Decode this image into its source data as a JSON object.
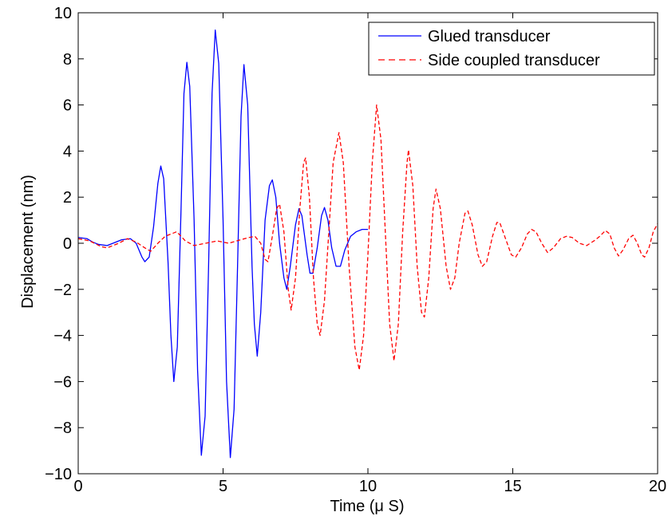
{
  "chart_data": {
    "type": "line",
    "title": "",
    "xlabel": "Time (μ S)",
    "ylabel": "Displacement (nm)",
    "xlim": [
      0,
      20
    ],
    "ylim": [
      -10,
      10
    ],
    "xticks": [
      0,
      5,
      10,
      15,
      20
    ],
    "yticks": [
      -10,
      -8,
      -6,
      -4,
      -2,
      0,
      2,
      4,
      6,
      8,
      10
    ],
    "grid": false,
    "legend": "top-right",
    "series": [
      {
        "name": "Glued transducer",
        "color": "#0000ff",
        "style": "solid",
        "points": [
          [
            0.0,
            0.25
          ],
          [
            0.3,
            0.2
          ],
          [
            0.5,
            0.05
          ],
          [
            0.7,
            -0.05
          ],
          [
            1.0,
            -0.1
          ],
          [
            1.2,
            0.0
          ],
          [
            1.5,
            0.15
          ],
          [
            1.8,
            0.2
          ],
          [
            2.0,
            0.0
          ],
          [
            2.2,
            -0.6
          ],
          [
            2.3,
            -0.8
          ],
          [
            2.45,
            -0.6
          ],
          [
            2.6,
            0.7
          ],
          [
            2.75,
            2.6
          ],
          [
            2.85,
            3.35
          ],
          [
            2.95,
            2.8
          ],
          [
            3.1,
            -0.8
          ],
          [
            3.2,
            -4.0
          ],
          [
            3.3,
            -6.0
          ],
          [
            3.42,
            -4.5
          ],
          [
            3.55,
            1.5
          ],
          [
            3.65,
            6.5
          ],
          [
            3.75,
            7.85
          ],
          [
            3.85,
            6.8
          ],
          [
            4.0,
            1.0
          ],
          [
            4.12,
            -5.5
          ],
          [
            4.25,
            -9.2
          ],
          [
            4.38,
            -7.5
          ],
          [
            4.5,
            -1.0
          ],
          [
            4.62,
            6.5
          ],
          [
            4.73,
            9.25
          ],
          [
            4.85,
            7.8
          ],
          [
            5.0,
            1.0
          ],
          [
            5.12,
            -6.0
          ],
          [
            5.25,
            -9.3
          ],
          [
            5.38,
            -7.2
          ],
          [
            5.5,
            -1.0
          ],
          [
            5.62,
            5.5
          ],
          [
            5.72,
            7.75
          ],
          [
            5.85,
            6.0
          ],
          [
            6.0,
            -1.0
          ],
          [
            6.08,
            -3.5
          ],
          [
            6.18,
            -4.9
          ],
          [
            6.3,
            -3.0
          ],
          [
            6.45,
            1.0
          ],
          [
            6.6,
            2.5
          ],
          [
            6.7,
            2.75
          ],
          [
            6.82,
            2.0
          ],
          [
            6.95,
            0.0
          ],
          [
            7.1,
            -1.5
          ],
          [
            7.2,
            -2.0
          ],
          [
            7.32,
            -1.0
          ],
          [
            7.5,
            0.8
          ],
          [
            7.62,
            1.5
          ],
          [
            7.72,
            1.2
          ],
          [
            7.9,
            -0.5
          ],
          [
            8.0,
            -1.3
          ],
          [
            8.1,
            -1.3
          ],
          [
            8.25,
            -0.2
          ],
          [
            8.4,
            1.2
          ],
          [
            8.5,
            1.55
          ],
          [
            8.62,
            1.0
          ],
          [
            8.75,
            -0.2
          ],
          [
            8.9,
            -1.0
          ],
          [
            9.05,
            -1.0
          ],
          [
            9.2,
            -0.3
          ],
          [
            9.4,
            0.3
          ],
          [
            9.6,
            0.5
          ],
          [
            9.8,
            0.6
          ],
          [
            10.0,
            0.6
          ]
        ]
      },
      {
        "name": "Side coupled transducer",
        "color": "#ff0000",
        "style": "dashed",
        "points": [
          [
            0.0,
            0.2
          ],
          [
            0.4,
            0.1
          ],
          [
            0.8,
            -0.15
          ],
          [
            1.0,
            -0.2
          ],
          [
            1.4,
            0.0
          ],
          [
            1.7,
            0.2
          ],
          [
            2.0,
            0.05
          ],
          [
            2.3,
            -0.2
          ],
          [
            2.5,
            -0.35
          ],
          [
            2.75,
            0.0
          ],
          [
            3.0,
            0.3
          ],
          [
            3.4,
            0.5
          ],
          [
            3.7,
            0.1
          ],
          [
            4.0,
            -0.1
          ],
          [
            4.4,
            0.0
          ],
          [
            4.8,
            0.1
          ],
          [
            5.2,
            0.0
          ],
          [
            5.6,
            0.15
          ],
          [
            5.9,
            0.25
          ],
          [
            6.1,
            0.3
          ],
          [
            6.3,
            0.0
          ],
          [
            6.45,
            -0.7
          ],
          [
            6.55,
            -0.8
          ],
          [
            6.7,
            0.3
          ],
          [
            6.85,
            1.5
          ],
          [
            6.95,
            1.7
          ],
          [
            7.1,
            0.5
          ],
          [
            7.25,
            -2.0
          ],
          [
            7.35,
            -2.9
          ],
          [
            7.5,
            -1.5
          ],
          [
            7.65,
            1.5
          ],
          [
            7.78,
            3.5
          ],
          [
            7.85,
            3.7
          ],
          [
            7.98,
            2.0
          ],
          [
            8.12,
            -1.5
          ],
          [
            8.25,
            -3.5
          ],
          [
            8.35,
            -4.0
          ],
          [
            8.5,
            -2.5
          ],
          [
            8.65,
            0.5
          ],
          [
            8.8,
            3.5
          ],
          [
            9.0,
            4.8
          ],
          [
            9.15,
            3.5
          ],
          [
            9.35,
            -1.0
          ],
          [
            9.55,
            -4.5
          ],
          [
            9.7,
            -5.5
          ],
          [
            9.85,
            -4.0
          ],
          [
            10.0,
            -0.5
          ],
          [
            10.15,
            3.5
          ],
          [
            10.3,
            6.0
          ],
          [
            10.45,
            4.5
          ],
          [
            10.6,
            0.5
          ],
          [
            10.75,
            -3.5
          ],
          [
            10.9,
            -5.1
          ],
          [
            11.05,
            -3.5
          ],
          [
            11.2,
            0.5
          ],
          [
            11.35,
            3.5
          ],
          [
            11.4,
            4.05
          ],
          [
            11.55,
            2.5
          ],
          [
            11.7,
            -1.0
          ],
          [
            11.85,
            -3.0
          ],
          [
            11.95,
            -3.2
          ],
          [
            12.1,
            -1.5
          ],
          [
            12.25,
            1.5
          ],
          [
            12.35,
            2.35
          ],
          [
            12.5,
            1.5
          ],
          [
            12.7,
            -1.0
          ],
          [
            12.85,
            -2.0
          ],
          [
            13.0,
            -1.5
          ],
          [
            13.15,
            0.0
          ],
          [
            13.35,
            1.3
          ],
          [
            13.45,
            1.4
          ],
          [
            13.6,
            0.8
          ],
          [
            13.8,
            -0.5
          ],
          [
            13.95,
            -1.0
          ],
          [
            14.1,
            -0.8
          ],
          [
            14.3,
            0.3
          ],
          [
            14.45,
            0.9
          ],
          [
            14.55,
            0.9
          ],
          [
            14.75,
            0.2
          ],
          [
            14.95,
            -0.5
          ],
          [
            15.1,
            -0.6
          ],
          [
            15.3,
            -0.2
          ],
          [
            15.5,
            0.4
          ],
          [
            15.65,
            0.6
          ],
          [
            15.8,
            0.5
          ],
          [
            16.0,
            0.0
          ],
          [
            16.2,
            -0.4
          ],
          [
            16.4,
            -0.2
          ],
          [
            16.65,
            0.2
          ],
          [
            16.85,
            0.3
          ],
          [
            17.05,
            0.25
          ],
          [
            17.3,
            0.0
          ],
          [
            17.55,
            -0.1
          ],
          [
            17.8,
            0.1
          ],
          [
            18.0,
            0.3
          ],
          [
            18.2,
            0.55
          ],
          [
            18.35,
            0.4
          ],
          [
            18.5,
            -0.2
          ],
          [
            18.65,
            -0.55
          ],
          [
            18.8,
            -0.3
          ],
          [
            19.0,
            0.2
          ],
          [
            19.15,
            0.35
          ],
          [
            19.3,
            0.0
          ],
          [
            19.45,
            -0.5
          ],
          [
            19.55,
            -0.6
          ],
          [
            19.7,
            -0.2
          ],
          [
            19.85,
            0.5
          ],
          [
            20.0,
            0.85
          ]
        ]
      }
    ]
  }
}
